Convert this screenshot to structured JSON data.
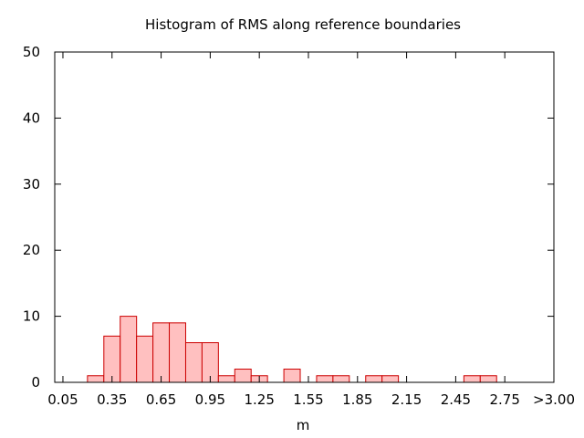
{
  "chart_data": {
    "type": "bar",
    "title": "Histogram of RMS along reference boundaries",
    "xlabel": "m",
    "ylabel": "",
    "bin_width": 0.1,
    "xlim": [
      0.0,
      3.05
    ],
    "ylim": [
      0,
      50
    ],
    "x_ticks": [
      0.05,
      0.35,
      0.65,
      0.95,
      1.25,
      1.55,
      1.85,
      2.15,
      2.45,
      2.75,
      3.05
    ],
    "x_tick_labels": [
      "0.05",
      "0.35",
      "0.65",
      "0.95",
      "1.25",
      "1.55",
      "1.85",
      "2.15",
      "2.45",
      "2.75",
      ">3.00"
    ],
    "y_ticks": [
      0,
      10,
      20,
      30,
      40,
      50
    ],
    "grid": false,
    "bar_fill": "#ffc0c0",
    "bar_stroke": "#cc0000",
    "x": [
      0.25,
      0.35,
      0.45,
      0.55,
      0.65,
      0.75,
      0.85,
      0.95,
      1.05,
      1.15,
      1.25,
      1.45,
      1.65,
      1.75,
      1.95,
      2.05,
      2.55,
      2.65
    ],
    "values": [
      1,
      7,
      10,
      7,
      9,
      9,
      6,
      6,
      1,
      2,
      1,
      2,
      1,
      1,
      1,
      1,
      1,
      1
    ]
  }
}
